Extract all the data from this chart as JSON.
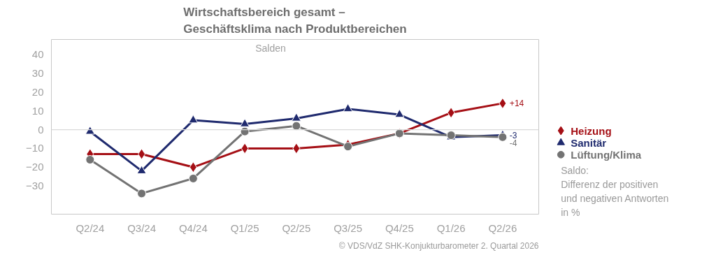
{
  "chart_data": {
    "type": "line",
    "title": "Wirtschaftsbereich gesamt –\nGeschäftsklima nach Produktbereichen",
    "subtitle": "Salden",
    "categories": [
      "Q2/24",
      "Q3/24",
      "Q4/24",
      "Q1/25",
      "Q2/25",
      "Q3/25",
      "Q4/25",
      "Q1/26",
      "Q2/26"
    ],
    "series": [
      {
        "name": "Heizung",
        "color": "#a50f15",
        "marker": "diamond",
        "values": [
          -13,
          -13,
          -20,
          -10,
          -10,
          -8,
          -2,
          9,
          14
        ],
        "value_labels": [
          null,
          null,
          null,
          null,
          null,
          null,
          null,
          null,
          "+14"
        ]
      },
      {
        "name": "Sanitär",
        "color": "#1f2a6e",
        "marker": "triangle",
        "values": [
          -1,
          -22,
          5,
          3,
          6,
          11,
          8,
          -4,
          -3
        ],
        "value_labels": [
          null,
          null,
          null,
          null,
          null,
          null,
          null,
          null,
          "-3"
        ]
      },
      {
        "name": "Lüftung/Klima",
        "color": "#737373",
        "marker": "circle",
        "values": [
          -16,
          -34,
          -26,
          -1,
          2,
          -9,
          -2,
          -3,
          -4
        ],
        "value_labels": [
          null,
          null,
          null,
          null,
          null,
          null,
          null,
          null,
          "-4"
        ]
      }
    ],
    "ylim": [
      -45,
      48
    ],
    "yticks": [
      -30,
      -20,
      -10,
      0,
      10,
      20,
      30,
      40
    ],
    "grid": false,
    "legend": "right",
    "ref_lines": [
      {
        "axis": "y",
        "value": 0,
        "color": "#d9d9d9"
      }
    ],
    "annotations": [
      "Saldo:\nDifferenz der positiven\nund negativen Antworten\nin %",
      "© VDS/VdZ SHK-Konjukturbarometer 2. Quartal 2026"
    ]
  }
}
